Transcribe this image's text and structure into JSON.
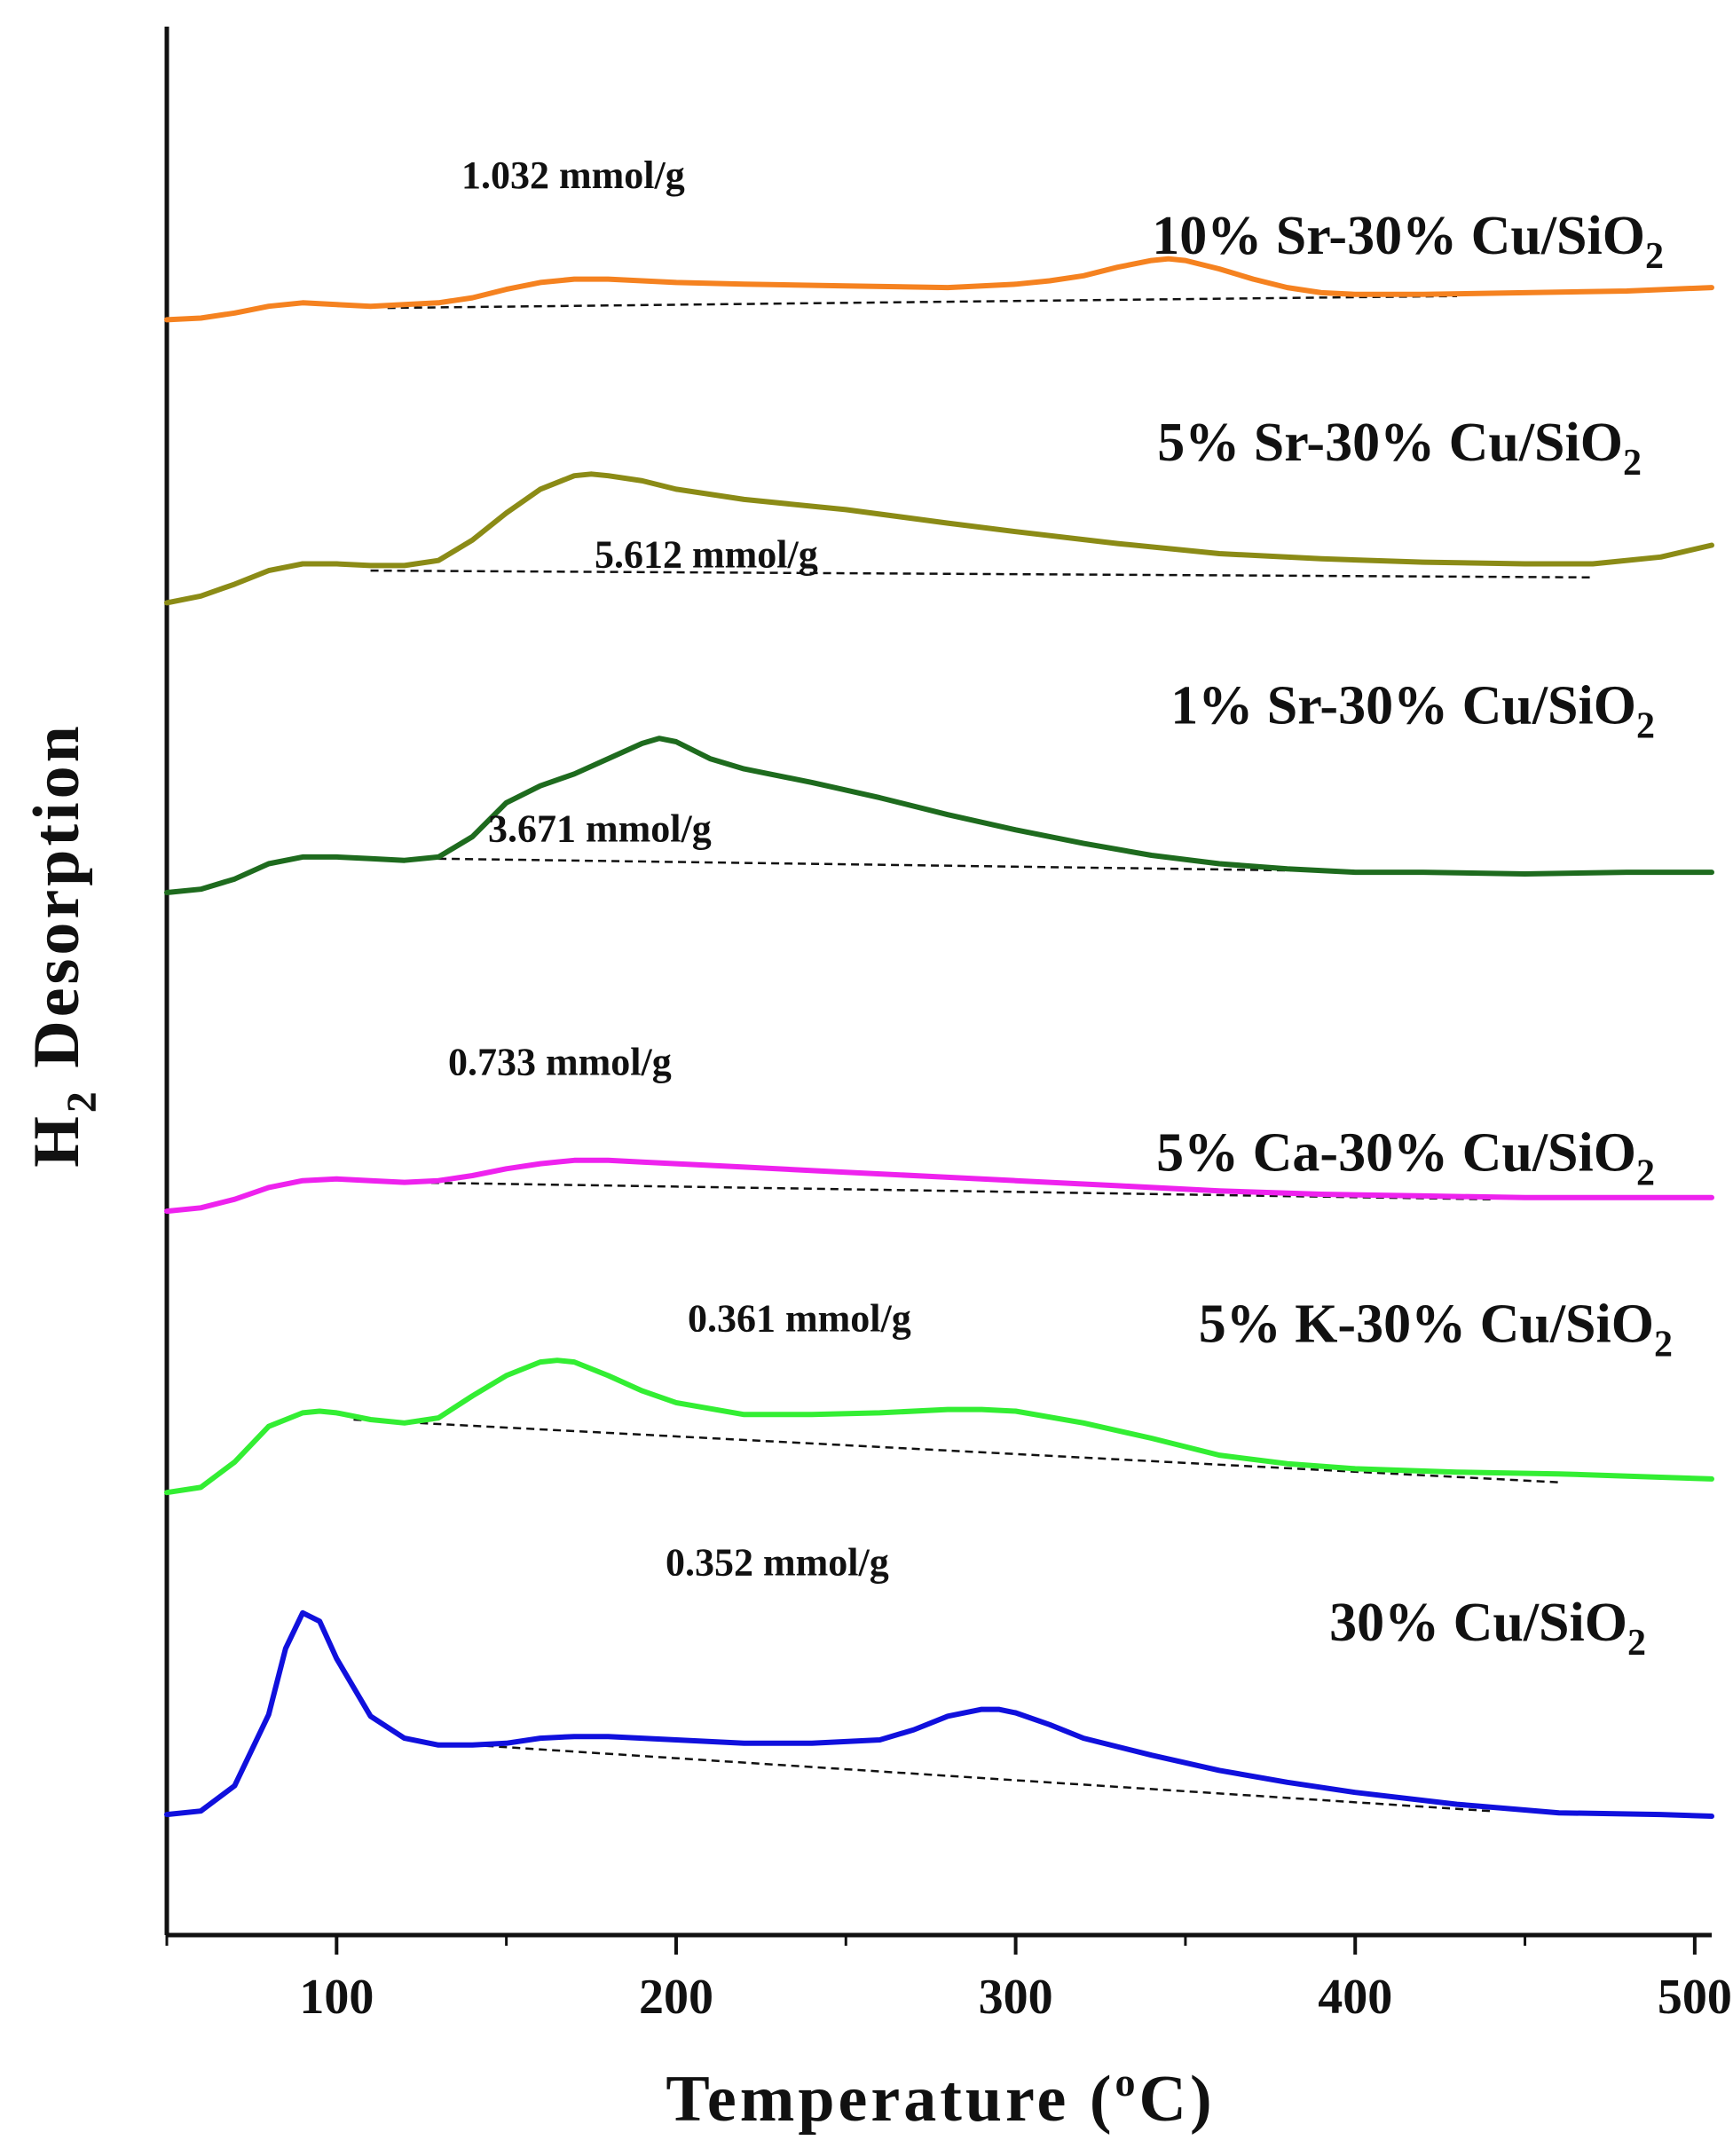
{
  "chart_data": {
    "type": "line",
    "title": "",
    "xlabel": "Temperature (°C)",
    "xlabel_main": "Temperature (",
    "xlabel_degree": "o",
    "xlabel_unit": "C)",
    "ylabel": "H2 Desorption",
    "ylabel_h": "H",
    "ylabel_sub": "2",
    "ylabel_rest": " Desorption",
    "xlim": [
      50,
      505
    ],
    "ylim": [
      0,
      100
    ],
    "xticks": [
      100,
      200,
      300,
      400,
      500
    ],
    "xtick_labels": [
      "100",
      "200",
      "300",
      "400",
      "500"
    ],
    "y_units": "a.u. (stacked offset)",
    "grid": false,
    "legend": "inline labels at right",
    "series": [
      {
        "name": "10% Sr-30% Cu/SiO2",
        "label_main": "10% Sr-30% Cu/SiO",
        "label_sub": "2",
        "color": "#f58220",
        "amount": "1.032 mmol/g",
        "x": [
          50,
          60,
          70,
          80,
          90,
          100,
          110,
          120,
          130,
          140,
          150,
          160,
          170,
          180,
          190,
          200,
          220,
          250,
          280,
          290,
          300,
          310,
          320,
          330,
          340,
          345,
          350,
          360,
          370,
          380,
          390,
          400,
          420,
          450,
          480,
          505
        ],
        "y": [
          91.6,
          91.7,
          92.0,
          92.4,
          92.6,
          92.5,
          92.4,
          92.5,
          92.6,
          92.9,
          93.4,
          93.8,
          94.0,
          94.0,
          93.9,
          93.8,
          93.7,
          93.6,
          93.5,
          93.6,
          93.7,
          93.9,
          94.2,
          94.7,
          95.1,
          95.2,
          95.1,
          94.6,
          94.0,
          93.5,
          93.2,
          93.1,
          93.1,
          93.2,
          93.3,
          93.5
        ],
        "baseline": [
          [
            115,
            92.3
          ],
          [
            430,
            93.0
          ]
        ]
      },
      {
        "name": "5% Sr-30% Cu/SiO2",
        "label_main": "5% Sr-30% Cu/SiO",
        "label_sub": "2",
        "color": "#8b8b16",
        "amount": "5.612 mmol/g",
        "x": [
          50,
          60,
          70,
          80,
          90,
          100,
          110,
          120,
          130,
          140,
          150,
          160,
          170,
          175,
          180,
          190,
          200,
          220,
          250,
          280,
          300,
          330,
          360,
          390,
          420,
          450,
          470,
          490,
          505
        ],
        "y": [
          74.9,
          75.3,
          76.0,
          76.8,
          77.2,
          77.2,
          77.1,
          77.1,
          77.4,
          78.6,
          80.2,
          81.6,
          82.4,
          82.5,
          82.4,
          82.1,
          81.6,
          81.0,
          80.4,
          79.6,
          79.1,
          78.4,
          77.8,
          77.5,
          77.3,
          77.2,
          77.2,
          77.6,
          78.3
        ],
        "baseline": [
          [
            110,
            76.8
          ],
          [
            470,
            76.4
          ]
        ]
      },
      {
        "name": "1% Sr-30% Cu/SiO2",
        "label_main": "1% Sr-30% Cu/SiO",
        "label_sub": "2",
        "color": "#1e6b1e",
        "amount": "3.671 mmol/g",
        "x": [
          50,
          60,
          70,
          80,
          90,
          100,
          110,
          120,
          130,
          140,
          150,
          160,
          170,
          180,
          190,
          195,
          200,
          210,
          220,
          240,
          260,
          280,
          300,
          320,
          340,
          360,
          380,
          400,
          420,
          450,
          480,
          505
        ],
        "y": [
          57.8,
          58.0,
          58.6,
          59.5,
          59.9,
          59.9,
          59.8,
          59.7,
          59.9,
          61.1,
          63.1,
          64.1,
          64.8,
          65.7,
          66.6,
          66.9,
          66.7,
          65.7,
          65.1,
          64.3,
          63.4,
          62.4,
          61.5,
          60.7,
          60.0,
          59.5,
          59.2,
          59.0,
          59.0,
          58.9,
          59.0,
          59.0
        ],
        "baseline": [
          [
            130,
            59.8
          ],
          [
            420,
            59.0
          ]
        ]
      },
      {
        "name": "5% Ca-30% Cu/SiO2",
        "label_main": "5% Ca-30% Cu/SiO",
        "label_sub": "2",
        "color": "#ee22ee",
        "amount": "0.733 mmol/g",
        "x": [
          50,
          60,
          70,
          80,
          90,
          100,
          110,
          120,
          130,
          140,
          150,
          160,
          170,
          180,
          190,
          200,
          220,
          250,
          280,
          300,
          330,
          360,
          390,
          420,
          450,
          480,
          505
        ],
        "y": [
          39.0,
          39.2,
          39.7,
          40.4,
          40.8,
          40.9,
          40.8,
          40.7,
          40.8,
          41.1,
          41.5,
          41.8,
          42.0,
          42.0,
          41.9,
          41.8,
          41.6,
          41.3,
          41.0,
          40.8,
          40.5,
          40.2,
          40.0,
          39.9,
          39.8,
          39.8,
          39.8
        ],
        "baseline": [
          [
            120,
            40.7
          ],
          [
            440,
            39.7
          ]
        ]
      },
      {
        "name": "5% K-30% Cu/SiO2",
        "label_main": "5% K-30% Cu/SiO",
        "label_sub": "2",
        "color": "#33ee33",
        "amount": "0.361 mmol/g",
        "x": [
          50,
          60,
          70,
          80,
          90,
          95,
          100,
          110,
          120,
          130,
          140,
          150,
          160,
          165,
          170,
          180,
          190,
          200,
          220,
          240,
          260,
          280,
          290,
          300,
          320,
          340,
          360,
          380,
          400,
          430,
          460,
          490,
          505
        ],
        "y": [
          22.4,
          22.7,
          24.2,
          26.3,
          27.1,
          27.2,
          27.1,
          26.7,
          26.5,
          26.8,
          28.1,
          29.3,
          30.1,
          30.2,
          30.1,
          29.3,
          28.4,
          27.7,
          27.0,
          27.0,
          27.1,
          27.3,
          27.3,
          27.2,
          26.5,
          25.6,
          24.6,
          24.1,
          23.8,
          23.6,
          23.5,
          23.3,
          23.2
        ],
        "baseline": [
          [
            105,
            26.7
          ],
          [
            460,
            23.0
          ]
        ]
      },
      {
        "name": "30% Cu/SiO2",
        "label_main": "30% Cu/SiO",
        "label_sub": "2",
        "color": "#1010dd",
        "amount": "0.352 mmol/g",
        "x": [
          50,
          60,
          70,
          80,
          85,
          90,
          95,
          100,
          110,
          120,
          130,
          140,
          150,
          160,
          170,
          180,
          190,
          200,
          220,
          240,
          260,
          270,
          280,
          290,
          295,
          300,
          310,
          320,
          340,
          360,
          380,
          400,
          430,
          460,
          490,
          505
        ],
        "y": [
          3.4,
          3.6,
          5.1,
          9.3,
          13.2,
          15.3,
          14.8,
          12.6,
          9.2,
          7.9,
          7.5,
          7.5,
          7.6,
          7.9,
          8.0,
          8.0,
          7.9,
          7.8,
          7.6,
          7.6,
          7.8,
          8.4,
          9.2,
          9.6,
          9.6,
          9.4,
          8.7,
          7.9,
          6.9,
          6.0,
          5.3,
          4.7,
          4.0,
          3.5,
          3.4,
          3.3
        ],
        "baseline": [
          [
            140,
            7.5
          ],
          [
            440,
            3.6
          ]
        ]
      }
    ]
  }
}
